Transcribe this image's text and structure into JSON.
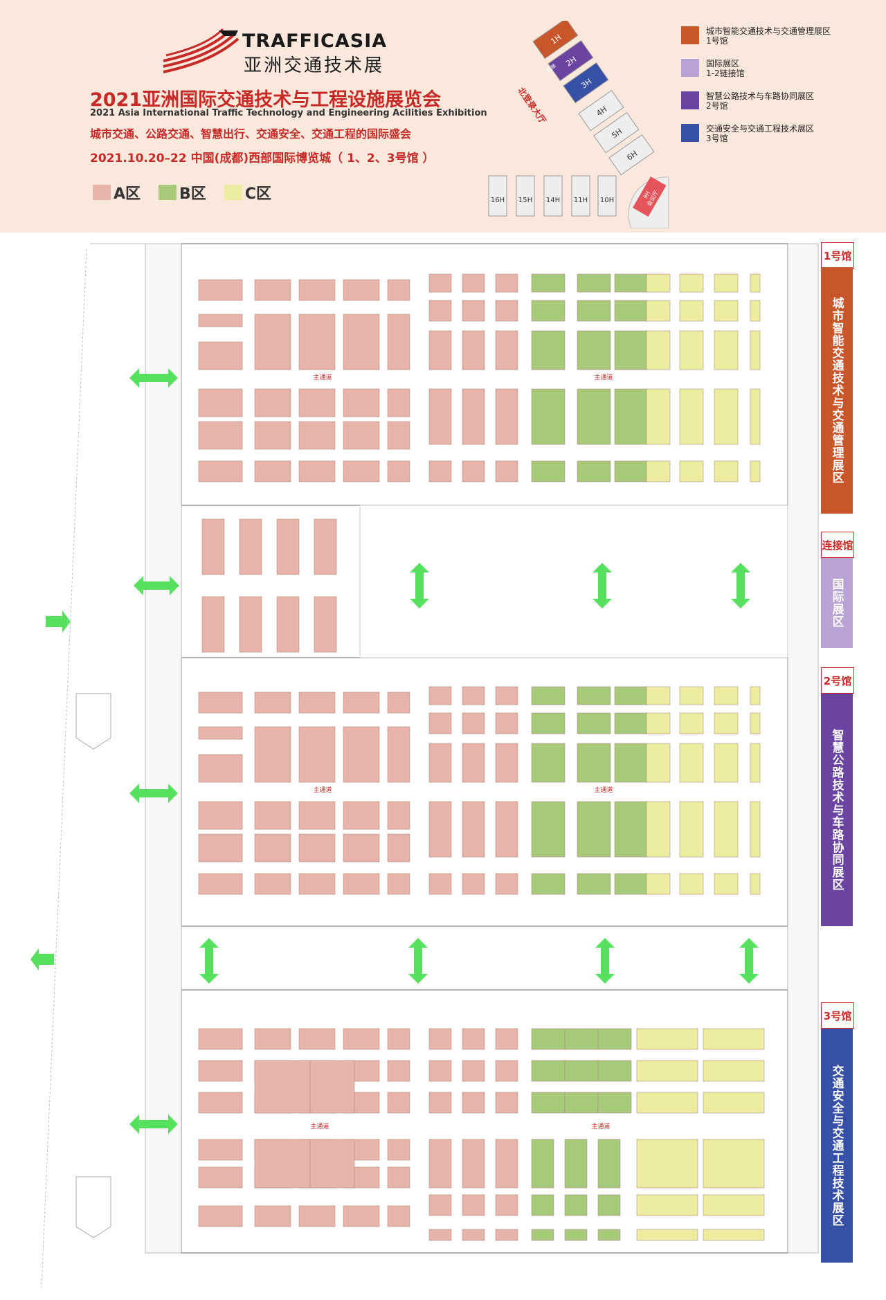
{
  "logo": {
    "en": "TRAFFICASIA",
    "cn": "亚洲交通技术展"
  },
  "title_cn": "2021亚洲国际交通技术与工程设施展览会",
  "title_en": "2021 Asia International Traffic Technology and Engineering Acilities Exhibition",
  "tagline": "城市交通、公路交通、智慧出行、交通安全、交通工程的国际盛会",
  "dates": "2021.10.20–22  中国(成都)西部国际博览城（ 1、2、3号馆 ）",
  "zone_legend": [
    {
      "label": "A区",
      "color": "#e8b3a8"
    },
    {
      "label": "B区",
      "color": "#a7c97a"
    },
    {
      "label": "C区",
      "color": "#ececa0"
    }
  ],
  "hall_legend": [
    {
      "label": "城市智能交通技术与交通管理展区",
      "hall": "1号馆",
      "color": "#c9562a"
    },
    {
      "label": "国际展区",
      "hall": "1-2链接馆",
      "color": "#b8a3d4"
    },
    {
      "label": "智慧公路技术与车路协同展区",
      "hall": "2号馆",
      "color": "#6a44a0"
    },
    {
      "label": "交通安全与交通工程技术展区",
      "hall": "3号馆",
      "color": "#3550a6"
    }
  ],
  "site_map": {
    "halls_diag": [
      "1H",
      "2H",
      "3H",
      "4H",
      "5H",
      "6H"
    ],
    "connector": "链接",
    "entrance": "北登录大厅",
    "halls_row": [
      "16H",
      "15H",
      "14H",
      "11H",
      "10H"
    ],
    "h9_a": "9H",
    "h9_b": "会议厅"
  },
  "main_aisle": "主通道",
  "side_labels": {
    "hall1": {
      "name": "1号馆",
      "zone": "城市智能交通技术与交通管理展区",
      "color": "#c9562a"
    },
    "link": {
      "name": "连接馆",
      "zone": "国际展区",
      "color": "#b8a3d4"
    },
    "hall2": {
      "name": "2号馆",
      "zone": "智慧公路技术与车路协同展区",
      "color": "#6a44a0"
    },
    "hall3": {
      "name": "3号馆",
      "zone": "交通安全与交通工程技术展区",
      "color": "#3550a6"
    }
  },
  "colors": {
    "A": "#e8b3a8",
    "B": "#a7c97a",
    "C": "#ececa0",
    "arrow": "#57e05e",
    "accent": "#c72a26"
  }
}
